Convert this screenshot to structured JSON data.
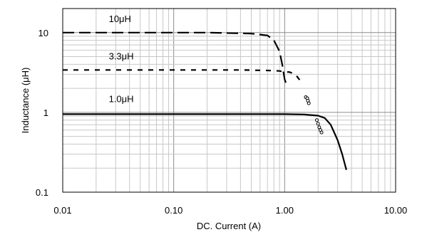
{
  "chart_data": {
    "type": "line",
    "title": "",
    "xlabel": "DC. Current (A)",
    "ylabel": "Inductance (μH)",
    "x_scale": "log",
    "y_scale": "log",
    "xlim": [
      0.01,
      10
    ],
    "ylim": [
      0.1,
      20
    ],
    "x_ticks": [
      0.01,
      0.1,
      1,
      10
    ],
    "x_tick_labels": [
      "0.01",
      "0.10",
      "1.00",
      "10.00"
    ],
    "y_ticks": [
      0.1,
      1,
      10
    ],
    "y_tick_labels": [
      "0.1",
      "1",
      "10"
    ],
    "grid": true,
    "series": [
      {
        "name": "10μH",
        "line_style": "long-dash",
        "color": "#000000",
        "x": [
          0.01,
          0.05,
          0.2,
          0.5,
          0.7,
          0.8,
          0.9,
          0.95,
          1.0,
          1.03
        ],
        "y": [
          10,
          10,
          10,
          9.7,
          9.2,
          8.0,
          5.8,
          4.0,
          2.6,
          2.3
        ]
      },
      {
        "name": "3.3μH",
        "line_style": "short-dash",
        "color": "#000000",
        "x": [
          0.01,
          0.1,
          0.4,
          0.7,
          0.9,
          1.0,
          1.1,
          1.25,
          1.35,
          1.45
        ],
        "y": [
          3.4,
          3.4,
          3.4,
          3.35,
          3.3,
          3.2,
          3.2,
          3.0,
          2.6,
          2.3
        ]
      },
      {
        "name": "1.0μH",
        "line_style": "solid",
        "color": "#000000",
        "x": [
          0.01,
          0.1,
          1.0,
          1.5,
          2.0,
          2.3,
          2.6,
          3.0,
          3.3,
          3.6
        ],
        "y": [
          0.95,
          0.95,
          0.95,
          0.94,
          0.91,
          0.85,
          0.7,
          0.45,
          0.3,
          0.19
        ]
      }
    ],
    "marker_series": [
      {
        "name_ref": "3.3μH",
        "x": [
          1.55,
          1.6,
          1.62,
          1.65
        ],
        "y": [
          1.55,
          1.5,
          1.4,
          1.3
        ]
      },
      {
        "name_ref": "1.0μH",
        "x": [
          1.95,
          2.0,
          2.05,
          2.1,
          2.15
        ],
        "y": [
          0.8,
          0.72,
          0.65,
          0.6,
          0.56
        ]
      }
    ],
    "annotations": [
      "10μH",
      "3.3μH",
      "1.0μH"
    ]
  }
}
